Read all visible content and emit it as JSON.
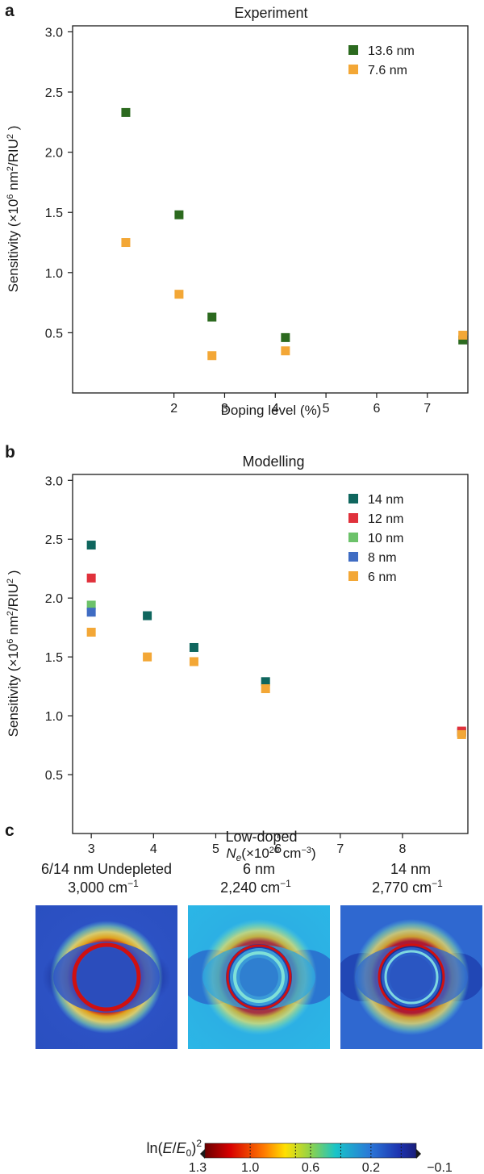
{
  "panels": {
    "a": {
      "letter": "a",
      "title": "Experiment",
      "xlabel": "Doping level (%)",
      "ylabel_parts": [
        "Sensitivity (×10",
        "6",
        " nm",
        "2",
        "/RIU",
        "2",
        " )"
      ]
    },
    "b": {
      "letter": "b",
      "title": "Modelling",
      "xlabel_parts": [
        "N",
        "e",
        "(×10",
        "20",
        " cm",
        "−3",
        ")"
      ],
      "ylabel_parts": [
        "Sensitivity (×10",
        "6",
        " nm",
        "2",
        "/RIU",
        "2",
        " )"
      ]
    },
    "c": {
      "letter": "c",
      "title": "Low-doped",
      "maps": [
        {
          "line1": "6/14 nm Undepleted",
          "line2": "3,000 cm",
          "sup": "−1",
          "kind": "undepleted"
        },
        {
          "line1": "6 nm",
          "line2": "2,240 cm",
          "sup": "−1",
          "kind": "depleted6"
        },
        {
          "line1": "14 nm",
          "line2": "2,770 cm",
          "sup": "−1",
          "kind": "depleted14"
        }
      ],
      "colorbar": {
        "label_parts": [
          "ln(",
          "E",
          "/",
          "E",
          "0",
          ")",
          "2"
        ],
        "ticks": [
          "1.3",
          "1.0",
          "0.6",
          "0.2",
          "−0.1"
        ],
        "min": -0.1,
        "max": 1.3
      }
    }
  },
  "chart_data": [
    {
      "type": "scatter",
      "title": "Experiment",
      "xlabel": "Doping level (%)",
      "ylabel": "Sensitivity (×10^6 nm^2/RIU^2 )",
      "xlim": [
        0.0,
        7.8
      ],
      "ylim": [
        0.0,
        3.05
      ],
      "xticks": [
        2,
        3,
        4,
        5,
        6,
        7
      ],
      "yticks": [
        0.5,
        1.0,
        1.5,
        2.0,
        2.5,
        3.0
      ],
      "xtick_labels": [
        "2",
        "3",
        "4",
        "5",
        "6",
        "7"
      ],
      "ytick_labels": [
        "0.5",
        "1.0",
        "1.5",
        "2.0",
        "2.5",
        "3.0"
      ],
      "legend_position": "top-right",
      "series": [
        {
          "name": "13.6 nm",
          "color": "#2c6a1f",
          "x": [
            1.05,
            2.1,
            2.75,
            4.2,
            7.7
          ],
          "y": [
            2.33,
            1.48,
            0.63,
            0.46,
            0.44
          ]
        },
        {
          "name": "7.6 nm",
          "color": "#f3a736",
          "x": [
            1.05,
            2.1,
            2.75,
            4.2,
            7.7
          ],
          "y": [
            1.25,
            0.82,
            0.31,
            0.35,
            0.48
          ]
        }
      ]
    },
    {
      "type": "scatter",
      "title": "Modelling",
      "xlabel": "Ne(×10^20 cm^-3)",
      "ylabel": "Sensitivity (×10^6 nm^2/RIU^2 )",
      "xlim": [
        2.7,
        9.05
      ],
      "ylim": [
        0.0,
        3.05
      ],
      "xticks": [
        3,
        4,
        5,
        6,
        7,
        8
      ],
      "yticks": [
        0.5,
        1.0,
        1.5,
        2.0,
        2.5,
        3.0
      ],
      "xtick_labels": [
        "3",
        "4",
        "5",
        "6",
        "7",
        "8"
      ],
      "ytick_labels": [
        "0.5",
        "1.0",
        "1.5",
        "2.0",
        "2.5",
        "3.0"
      ],
      "legend_position": "top-right",
      "series": [
        {
          "name": "14 nm",
          "color": "#0f665e",
          "x": [
            3.0,
            3.9,
            4.65,
            5.8,
            8.95
          ],
          "y": [
            2.45,
            1.85,
            1.58,
            1.29,
            0.86
          ]
        },
        {
          "name": "12 nm",
          "color": "#e0313b",
          "x": [
            3.0,
            8.95
          ],
          "y": [
            2.17,
            0.87
          ]
        },
        {
          "name": "10 nm",
          "color": "#6cc26a",
          "x": [
            3.0
          ],
          "y": [
            1.94
          ]
        },
        {
          "name": "8 nm",
          "color": "#3f6cc3",
          "x": [
            3.0
          ],
          "y": [
            1.88
          ]
        },
        {
          "name": "6 nm",
          "color": "#f3a736",
          "x": [
            3.0,
            3.9,
            4.65,
            5.8,
            8.95
          ],
          "y": [
            1.71,
            1.5,
            1.46,
            1.23,
            0.84
          ]
        }
      ]
    }
  ]
}
